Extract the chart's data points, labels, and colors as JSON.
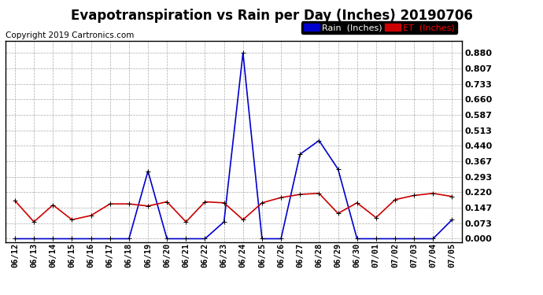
{
  "title": "Evapotranspiration vs Rain per Day (Inches) 20190706",
  "copyright": "Copyright 2019 Cartronics.com",
  "dates": [
    "06/12",
    "06/13",
    "06/14",
    "06/15",
    "06/16",
    "06/17",
    "06/18",
    "06/19",
    "06/20",
    "06/21",
    "06/22",
    "06/23",
    "06/24",
    "06/25",
    "06/26",
    "06/27",
    "06/28",
    "06/29",
    "06/30",
    "07/01",
    "07/02",
    "07/03",
    "07/04",
    "07/05"
  ],
  "rain": [
    0.0,
    0.0,
    0.0,
    0.0,
    0.0,
    0.0,
    0.0,
    0.32,
    0.0,
    0.0,
    0.0,
    0.08,
    0.88,
    0.0,
    0.0,
    0.4,
    0.465,
    0.33,
    0.0,
    0.0,
    0.0,
    0.0,
    0.0,
    0.09
  ],
  "et": [
    0.18,
    0.08,
    0.16,
    0.09,
    0.11,
    0.165,
    0.165,
    0.155,
    0.175,
    0.08,
    0.175,
    0.17,
    0.09,
    0.17,
    0.195,
    0.21,
    0.215,
    0.12,
    0.17,
    0.1,
    0.185,
    0.205,
    0.215,
    0.2
  ],
  "rain_color": "#0000cc",
  "et_color": "#cc0000",
  "background_color": "#ffffff",
  "grid_color": "#aaaaaa",
  "yticks": [
    0.0,
    0.073,
    0.147,
    0.22,
    0.293,
    0.367,
    0.44,
    0.513,
    0.587,
    0.66,
    0.733,
    0.807,
    0.88
  ],
  "ylim": [
    -0.015,
    0.935
  ],
  "title_fontsize": 12,
  "copyright_fontsize": 7.5,
  "tick_fontsize": 7.5,
  "ytick_fontsize": 8,
  "legend_rain_label": "Rain  (Inches)",
  "legend_et_label": "ET  (Inches)",
  "legend_fontsize": 8
}
